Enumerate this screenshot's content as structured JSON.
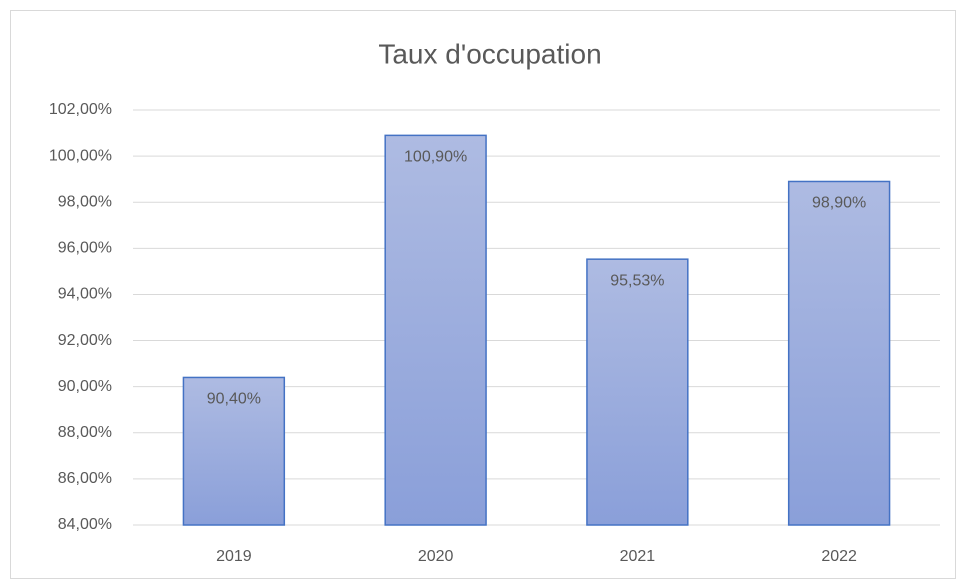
{
  "chart_data": {
    "type": "bar",
    "title": "Taux d'occupation",
    "categories": [
      "2019",
      "2020",
      "2021",
      "2022"
    ],
    "values": [
      90.4,
      100.9,
      95.53,
      98.9
    ],
    "value_labels": [
      "90,40%",
      "100,90%",
      "95,53%",
      "98,90%"
    ],
    "color": "#4472c4",
    "ylim": [
      84,
      102
    ],
    "yticks": [
      {
        "value": 84,
        "label": "84,00%"
      },
      {
        "value": 86,
        "label": "86,00%"
      },
      {
        "value": 88,
        "label": "88,00%"
      },
      {
        "value": 90,
        "label": "90,00%"
      },
      {
        "value": 92,
        "label": "92,00%"
      },
      {
        "value": 94,
        "label": "94,00%"
      },
      {
        "value": 96,
        "label": "96,00%"
      },
      {
        "value": 98,
        "label": "98,00%"
      },
      {
        "value": 100,
        "label": "100,00%"
      },
      {
        "value": 102,
        "label": "102,00%"
      }
    ],
    "grid": true
  }
}
